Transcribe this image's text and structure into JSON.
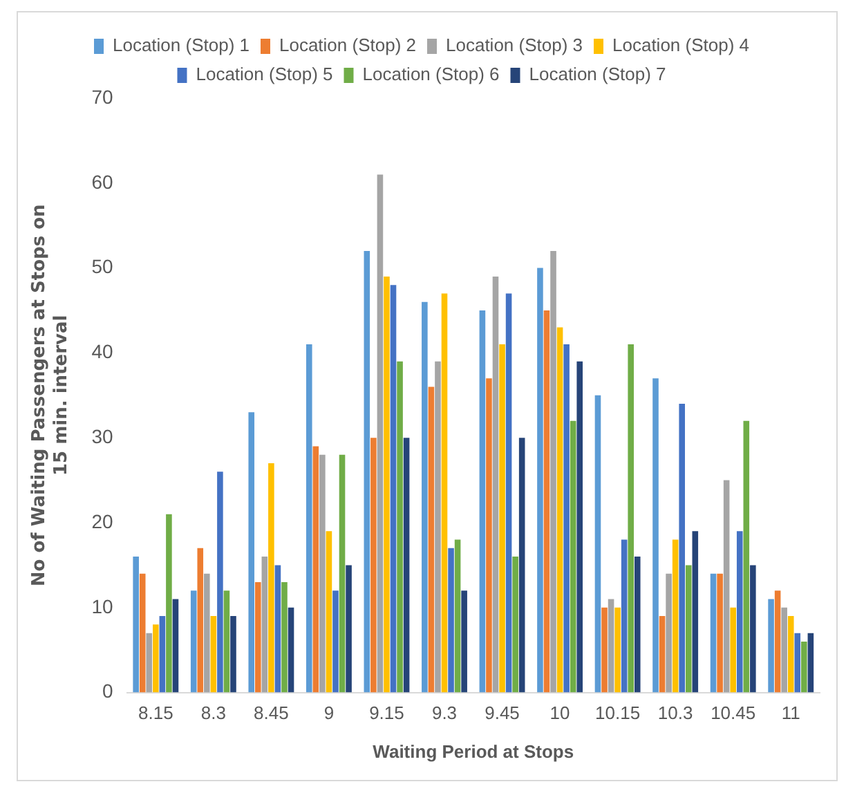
{
  "chart_data": {
    "type": "bar",
    "xlabel": "Waiting Period at Stops",
    "ylabel": "No of Waiting Passengers at Stops on\n15 min. interval",
    "categories": [
      "8.15",
      "8.3",
      "8.45",
      "9",
      "9.15",
      "9.3",
      "9.45",
      "10",
      "10.15",
      "10.3",
      "10.45",
      "11"
    ],
    "series": [
      {
        "name": "Location (Stop) 1",
        "color": "#5b9bd5",
        "values": [
          16,
          12,
          33,
          41,
          52,
          46,
          45,
          50,
          35,
          37,
          14,
          11
        ]
      },
      {
        "name": "Location (Stop) 2",
        "color": "#ed7d31",
        "values": [
          14,
          17,
          13,
          29,
          30,
          36,
          37,
          45,
          10,
          9,
          14,
          12
        ]
      },
      {
        "name": "Location (Stop) 3",
        "color": "#a5a5a5",
        "values": [
          7,
          14,
          16,
          28,
          61,
          39,
          49,
          52,
          11,
          14,
          25,
          10
        ]
      },
      {
        "name": "Location (Stop) 4",
        "color": "#ffc000",
        "values": [
          8,
          9,
          27,
          19,
          49,
          47,
          41,
          43,
          10,
          18,
          10,
          9
        ]
      },
      {
        "name": "Location (Stop) 5",
        "color": "#4472c4",
        "values": [
          9,
          26,
          15,
          12,
          48,
          17,
          47,
          41,
          18,
          34,
          19,
          7
        ]
      },
      {
        "name": "Location (Stop) 6",
        "color": "#70ad47",
        "values": [
          21,
          12,
          13,
          28,
          39,
          18,
          16,
          32,
          41,
          15,
          32,
          6
        ]
      },
      {
        "name": "Location (Stop) 7",
        "color": "#264478",
        "values": [
          11,
          9,
          10,
          15,
          30,
          12,
          30,
          39,
          16,
          19,
          15,
          7
        ]
      }
    ],
    "ylim": [
      0,
      70
    ],
    "yticks": [
      0,
      10,
      20,
      30,
      40,
      50,
      60,
      70
    ],
    "grid": false,
    "legend": "top"
  }
}
